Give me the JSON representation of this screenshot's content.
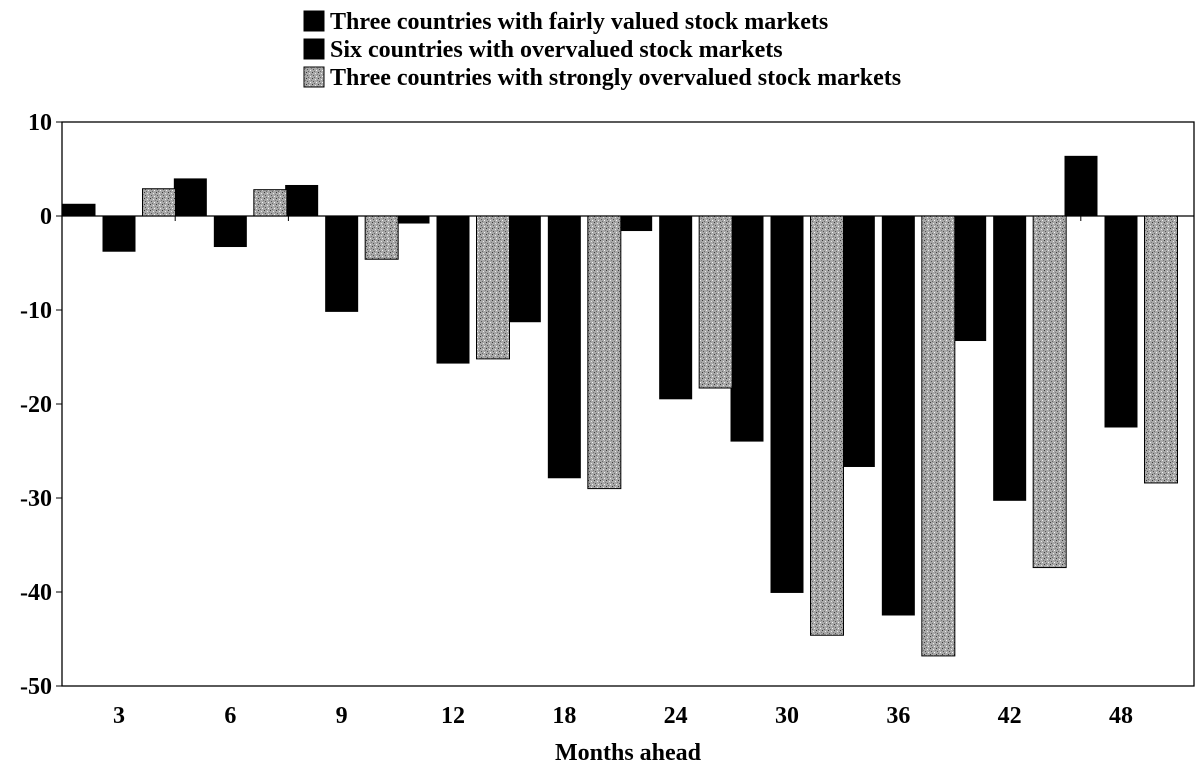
{
  "chart_data": {
    "type": "bar",
    "title": "",
    "xlabel": "Months ahead",
    "ylabel": "",
    "ylim": [
      -50,
      10
    ],
    "yticks": [
      10,
      0,
      -10,
      -20,
      -30,
      -40,
      -50
    ],
    "categories": [
      "3",
      "6",
      "9",
      "12",
      "18",
      "24",
      "30",
      "36",
      "42",
      "48"
    ],
    "grid": false,
    "legend_position": "top-center",
    "series": [
      {
        "name": "Three countries with fairly valued stock markets",
        "color": "#000000",
        "pattern": "solid",
        "values": [
          1.3,
          4.0,
          3.3,
          -0.8,
          -11.3,
          -1.6,
          -24.0,
          -26.7,
          -13.3,
          6.4
        ]
      },
      {
        "name": "Six countries with overvalued stock markets",
        "color": "#000000",
        "pattern": "solid",
        "values": [
          -3.8,
          -3.3,
          -10.2,
          -15.7,
          -27.9,
          -19.5,
          -40.1,
          -42.5,
          -30.3,
          -22.5
        ]
      },
      {
        "name": "Three countries with strongly overvalued stock markets",
        "color": "#9a9a9a",
        "pattern": "speckled",
        "values": [
          2.9,
          2.8,
          -4.6,
          -15.2,
          -29.0,
          -18.3,
          -44.6,
          -46.8,
          -37.4,
          -28.4
        ]
      }
    ]
  }
}
